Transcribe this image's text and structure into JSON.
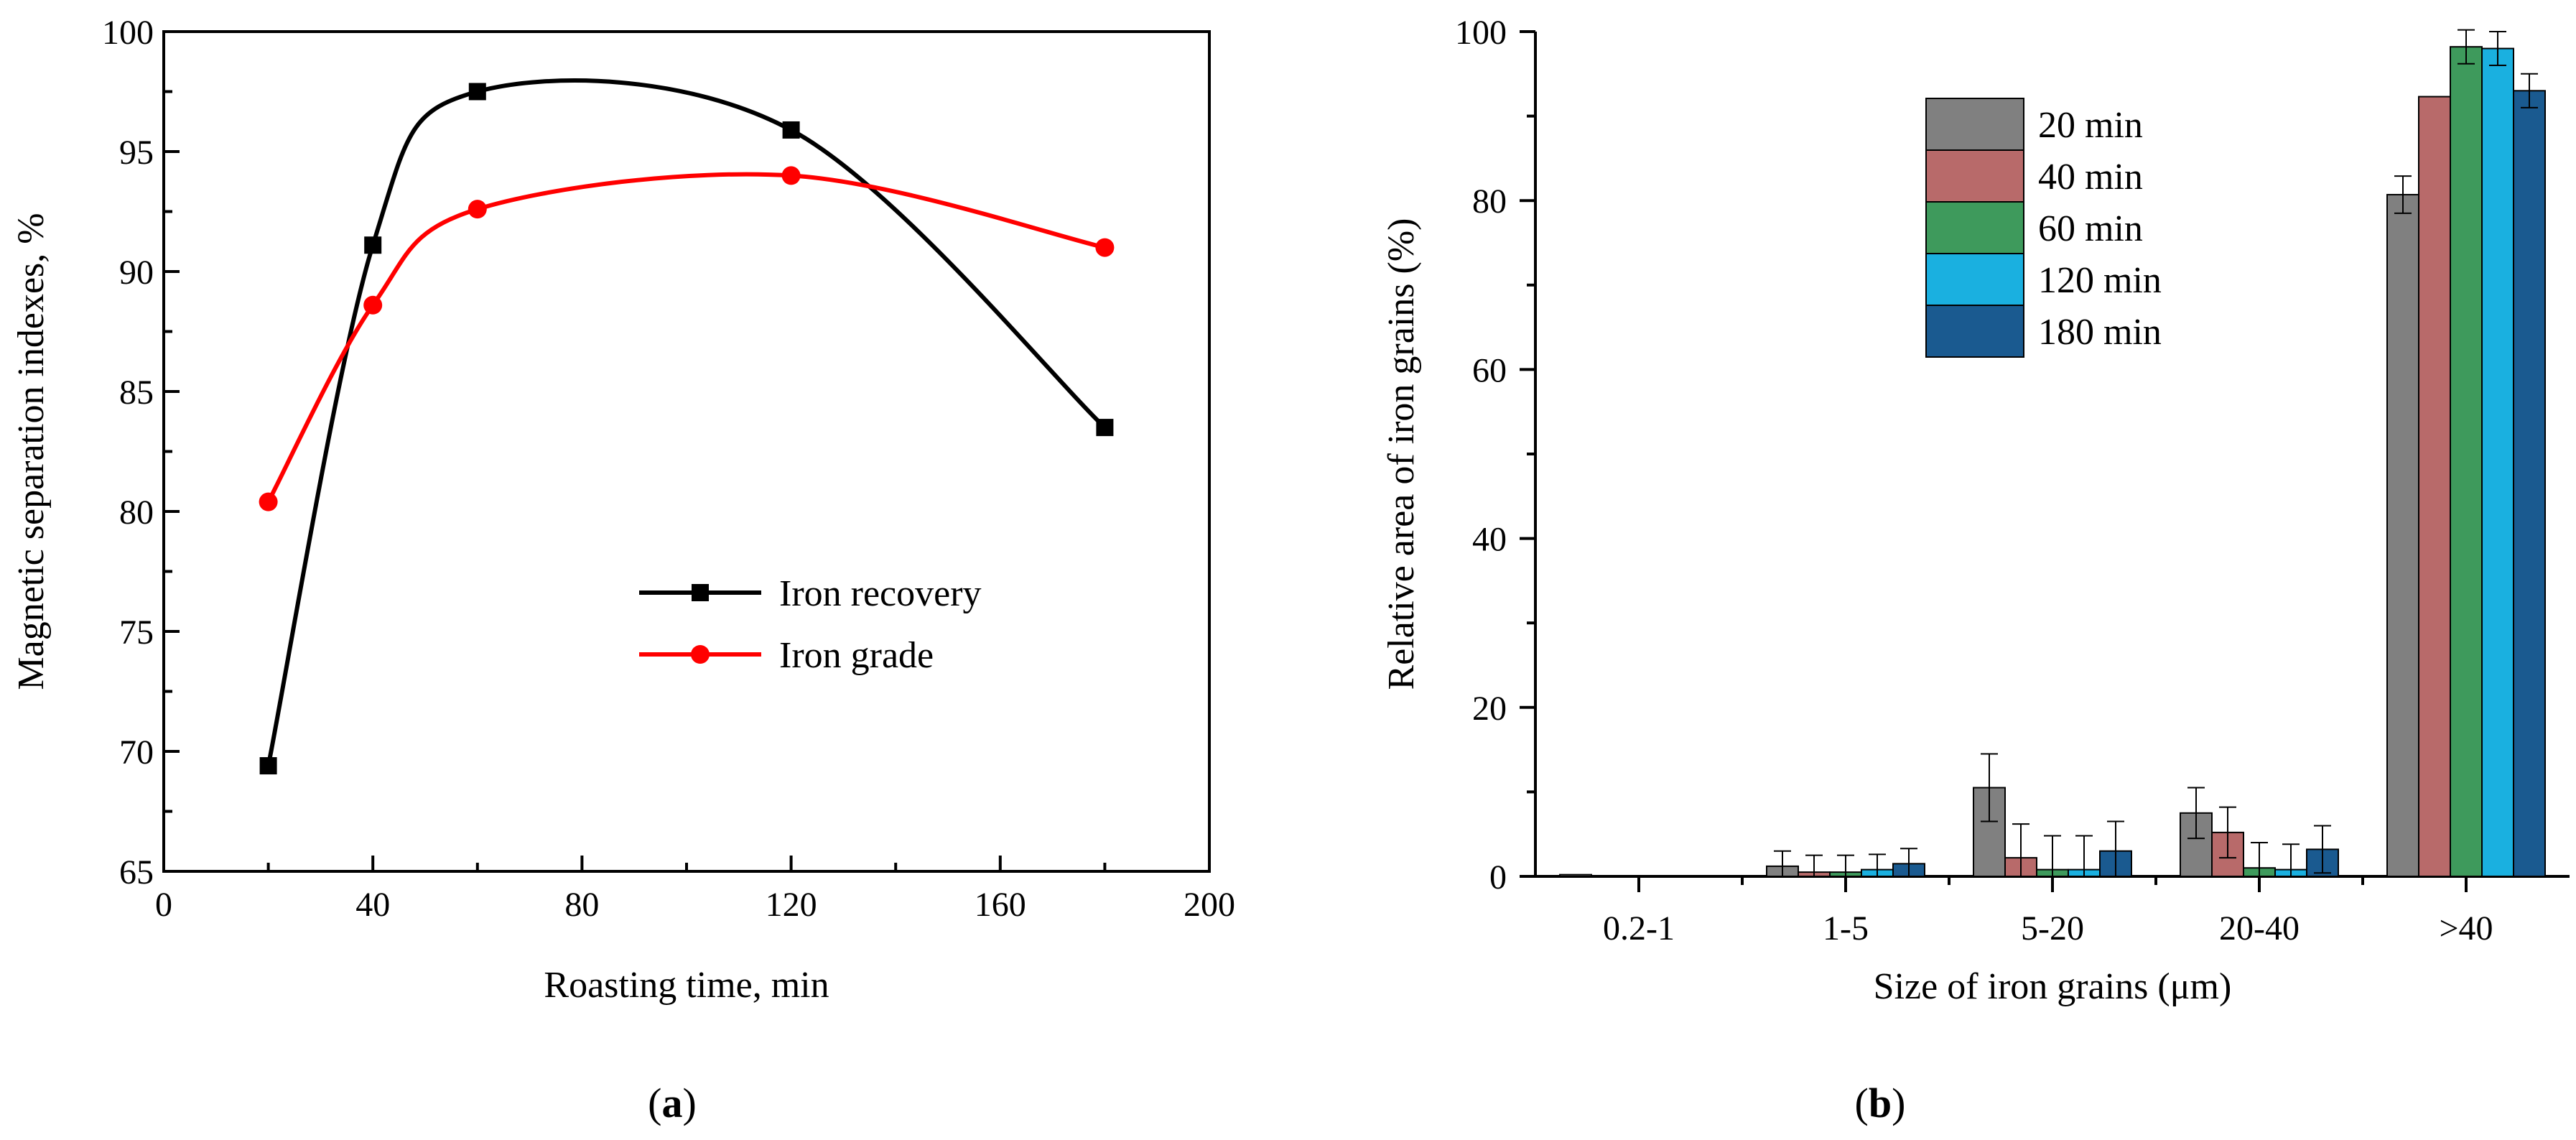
{
  "chart_data": [
    {
      "type": "line",
      "panel_label": "a",
      "xlabel": "Roasting time, min",
      "ylabel": "Magnetic separation indexes, %",
      "xlim": [
        0,
        200
      ],
      "ylim": [
        65,
        100
      ],
      "xticks": [
        "0",
        "40",
        "80",
        "120",
        "160",
        "200"
      ],
      "yticks": [
        "65",
        "70",
        "75",
        "80",
        "85",
        "90",
        "95",
        "100"
      ],
      "legend_position": "center-right",
      "series": [
        {
          "name": "Iron recovery",
          "color": "#000000",
          "marker": "square",
          "x": [
            20,
            40,
            60,
            120,
            180
          ],
          "y": [
            69.4,
            91.1,
            97.5,
            95.9,
            83.5
          ]
        },
        {
          "name": "Iron grade",
          "color": "#ff0000",
          "marker": "circle",
          "x": [
            20,
            40,
            60,
            120,
            180
          ],
          "y": [
            80.4,
            88.6,
            92.6,
            94.0,
            91.0
          ]
        }
      ]
    },
    {
      "type": "bar",
      "panel_label": "b",
      "xlabel": "Size of iron grains (μm)",
      "ylabel": "Relative area of iron grains (%)",
      "ylim": [
        0,
        100
      ],
      "yticks": [
        "0",
        "20",
        "40",
        "60",
        "80",
        "100"
      ],
      "categories": [
        "0.2-1",
        "1-5",
        "5-20",
        "20-40",
        ">40"
      ],
      "legend_position": "top-right",
      "series": [
        {
          "name": "20 min",
          "color": "#808080",
          "values": [
            0.2,
            1.2,
            10.5,
            7.5,
            80.7
          ],
          "errors": [
            0,
            1.8,
            4.0,
            3.0,
            2.2
          ]
        },
        {
          "name": "40 min",
          "color": "#b86a6a",
          "values": [
            0,
            0.5,
            2.2,
            5.2,
            92.3
          ],
          "errors": [
            0,
            2.0,
            4.0,
            3.0,
            0
          ]
        },
        {
          "name": "60 min",
          "color": "#3e9a5c",
          "values": [
            0,
            0.5,
            0.8,
            1.0,
            98.2
          ],
          "errors": [
            0,
            2.0,
            4.0,
            3.0,
            2.0
          ]
        },
        {
          "name": "120 min",
          "color": "#1ab0e0",
          "values": [
            0,
            0.8,
            0.8,
            0.8,
            98.0
          ],
          "errors": [
            0,
            1.8,
            4.0,
            3.0,
            2.0
          ]
        },
        {
          "name": "180 min",
          "color": "#1a5a90",
          "values": [
            0,
            1.5,
            3.0,
            3.2,
            93.0
          ],
          "errors": [
            0,
            1.8,
            3.5,
            2.8,
            2.0
          ]
        }
      ]
    }
  ]
}
